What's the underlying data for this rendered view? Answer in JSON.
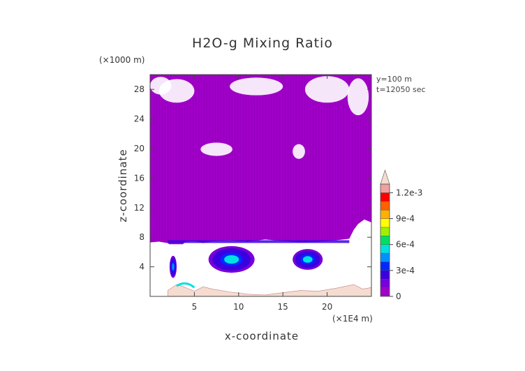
{
  "chart_data": {
    "type": "heatmap",
    "title": "H2O-g Mixing Ratio",
    "xlabel": "x-coordinate",
    "ylabel": "z-coordinate",
    "x_units": "(×1E4 m)",
    "y_units": "(×1000 m)",
    "annotations": [
      "y=100 m",
      "t=12050 sec"
    ],
    "xlim": [
      0,
      25
    ],
    "ylim": [
      0,
      30
    ],
    "x_ticks": [
      5,
      10,
      15,
      20
    ],
    "y_ticks": [
      4,
      8,
      12,
      16,
      20,
      24,
      28
    ],
    "grid": false,
    "legend": "right",
    "colorbar": {
      "ticks": [
        {
          "value": 0,
          "label": "0"
        },
        {
          "value": 0.0003,
          "label": "3e-4"
        },
        {
          "value": 0.0006,
          "label": "6e-4"
        },
        {
          "value": 0.0009,
          "label": "9e-4"
        },
        {
          "value": 0.0012,
          "label": "1.2e-3"
        }
      ],
      "range": [
        0,
        0.0013
      ],
      "levels": 13,
      "colors": [
        "#a000c8",
        "#7800d8",
        "#3c00e0",
        "#0028ff",
        "#0090ff",
        "#00e0e0",
        "#00e060",
        "#a0f000",
        "#ffff00",
        "#ffb000",
        "#ff6000",
        "#ff0000",
        "#f0a0a0"
      ],
      "extend_color": "#f5dcd0"
    },
    "regions": [
      {
        "name": "upper-moist-layer",
        "x": [
          0,
          25
        ],
        "z": [
          8,
          30
        ],
        "value": 3e-05
      },
      {
        "name": "lower-dry-region",
        "x": [
          0,
          25
        ],
        "z": [
          0.5,
          7.5
        ],
        "value": 0
      },
      {
        "name": "moist-pocket-left",
        "x": [
          2.2,
          3.0
        ],
        "z": [
          2.5,
          5.5
        ],
        "value": 0.0004
      },
      {
        "name": "moist-pocket-center",
        "x": [
          6.5,
          12
        ],
        "z": [
          3.5,
          7
        ],
        "value": 0.0005
      },
      {
        "name": "moist-pocket-right",
        "x": [
          16,
          20
        ],
        "z": [
          3.5,
          6.5
        ],
        "value": 0.0005
      },
      {
        "name": "surface-layer",
        "x": [
          2,
          25
        ],
        "z": [
          0,
          1
        ],
        "value": 0.0013
      }
    ]
  }
}
